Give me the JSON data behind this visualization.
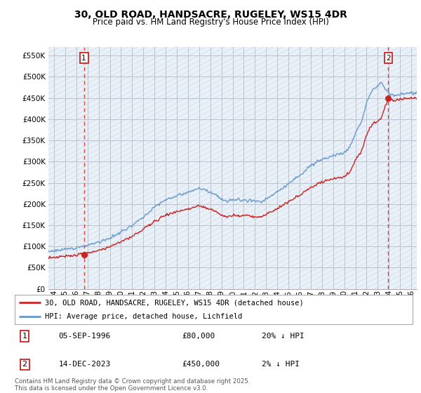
{
  "title": "30, OLD ROAD, HANDSACRE, RUGELEY, WS15 4DR",
  "subtitle": "Price paid vs. HM Land Registry's House Price Index (HPI)",
  "ylabel_ticks": [
    "£0",
    "£50K",
    "£100K",
    "£150K",
    "£200K",
    "£250K",
    "£300K",
    "£350K",
    "£400K",
    "£450K",
    "£500K",
    "£550K"
  ],
  "ytick_values": [
    0,
    50000,
    100000,
    150000,
    200000,
    250000,
    300000,
    350000,
    400000,
    450000,
    500000,
    550000
  ],
  "ylim": [
    0,
    570000
  ],
  "xlim_start": 1993.5,
  "xlim_end": 2026.5,
  "xticks": [
    1994,
    1995,
    1996,
    1997,
    1998,
    1999,
    2000,
    2001,
    2002,
    2003,
    2004,
    2005,
    2006,
    2007,
    2008,
    2009,
    2010,
    2011,
    2012,
    2013,
    2014,
    2015,
    2016,
    2017,
    2018,
    2019,
    2020,
    2021,
    2022,
    2023,
    2024,
    2025,
    2026
  ],
  "xtick_labels": [
    "94",
    "95",
    "96",
    "97",
    "98",
    "99",
    "00",
    "01",
    "02",
    "03",
    "04",
    "05",
    "06",
    "07",
    "08",
    "09",
    "10",
    "11",
    "12",
    "13",
    "14",
    "15",
    "16",
    "17",
    "18",
    "19",
    "20",
    "21",
    "22",
    "23",
    "24",
    "25",
    "26"
  ],
  "hpi_color": "#6699CC",
  "price_color": "#CC2222",
  "marker_color": "#CC2222",
  "dashed_line_color": "#DD3333",
  "point1_x": 1996.68,
  "point1_y": 80000,
  "point1_label": "1",
  "point1_date": "05-SEP-1996",
  "point1_price": "£80,000",
  "point1_hpi": "20% ↓ HPI",
  "point2_x": 2023.95,
  "point2_y": 450000,
  "point2_label": "2",
  "point2_date": "14-DEC-2023",
  "point2_price": "£450,000",
  "point2_hpi": "2% ↓ HPI",
  "legend_label1": "30, OLD ROAD, HANDSACRE, RUGELEY, WS15 4DR (detached house)",
  "legend_label2": "HPI: Average price, detached house, Lichfield",
  "footnote": "Contains HM Land Registry data © Crown copyright and database right 2025.\nThis data is licensed under the Open Government Licence v3.0.",
  "bg_color": "#FFFFFF",
  "plot_bg_color": "#E8F0F8",
  "grid_color": "#BBBBCC",
  "hatch_color": "#C8C8D8"
}
